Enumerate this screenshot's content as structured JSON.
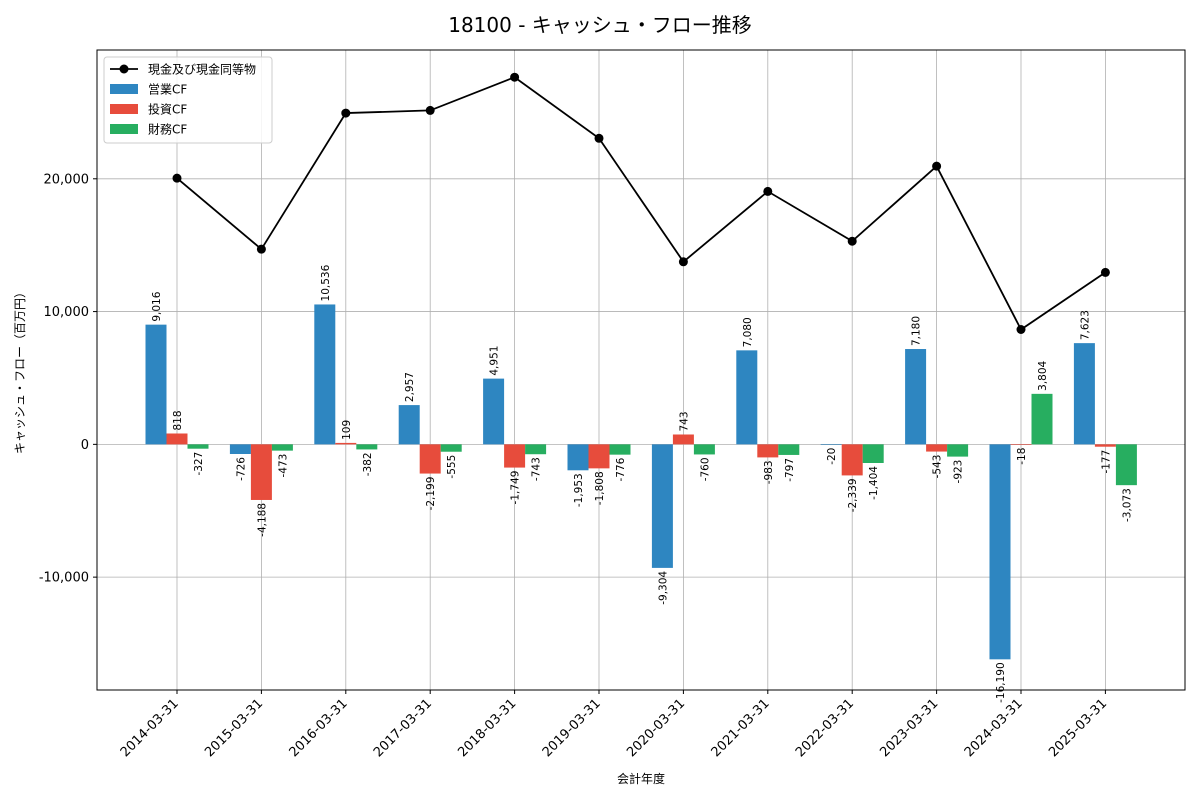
{
  "chart_data": {
    "type": "bar",
    "title": "18100 - キャッシュ・フロー推移",
    "xlabel": "会計年度",
    "ylabel": "キャッシュ・フロー（百万円）",
    "ylim": [
      -18500,
      29700
    ],
    "yticks": [
      -10000,
      0,
      10000,
      20000
    ],
    "ytick_labels": [
      "-10,000",
      "0",
      "10,000",
      "20,000"
    ],
    "grid": true,
    "legend_position": "top-left",
    "categories": [
      "2014-03-31",
      "2015-03-31",
      "2016-03-31",
      "2017-03-31",
      "2018-03-31",
      "2019-03-31",
      "2020-03-31",
      "2021-03-31",
      "2022-03-31",
      "2023-03-31",
      "2024-03-31",
      "2025-03-31"
    ],
    "series": [
      {
        "name": "営業CF",
        "kind": "bar",
        "color": "#2e86c1",
        "values": [
          9016,
          -726,
          10536,
          2957,
          4951,
          -1953,
          -9304,
          7080,
          -20,
          7180,
          -16190,
          7623
        ],
        "labels": [
          "9,016",
          "-726",
          "10,536",
          "2,957",
          "4,951",
          "-1,953",
          "-9,304",
          "7,080",
          "-20",
          "7,180",
          "-16,190",
          "7,623"
        ]
      },
      {
        "name": "投資CF",
        "kind": "bar",
        "color": "#e74c3c",
        "values": [
          818,
          -4188,
          109,
          -2199,
          -1749,
          -1808,
          743,
          -983,
          -2339,
          -543,
          -18,
          -177
        ],
        "labels": [
          "818",
          "-4,188",
          "109",
          "-2,199",
          "-1,749",
          "-1,808",
          "743",
          "-983",
          "-2,339",
          "-543",
          "-18",
          "-177"
        ]
      },
      {
        "name": "財務CF",
        "kind": "bar",
        "color": "#27ae60",
        "values": [
          -327,
          -473,
          -382,
          -555,
          -743,
          -776,
          -760,
          -797,
          -1404,
          -923,
          3804,
          -3073
        ],
        "labels": [
          "-327",
          "-473",
          "-382",
          "-555",
          "-743",
          "-776",
          "-760",
          "-797",
          "-1,404",
          "-923",
          "3,804",
          "-3,073"
        ]
      },
      {
        "name": "現金及び現金同等物",
        "kind": "line",
        "color": "#000000",
        "values": [
          20050,
          14700,
          24950,
          25150,
          27650,
          23050,
          13750,
          19050,
          15300,
          20950,
          8650,
          12950
        ]
      }
    ]
  }
}
